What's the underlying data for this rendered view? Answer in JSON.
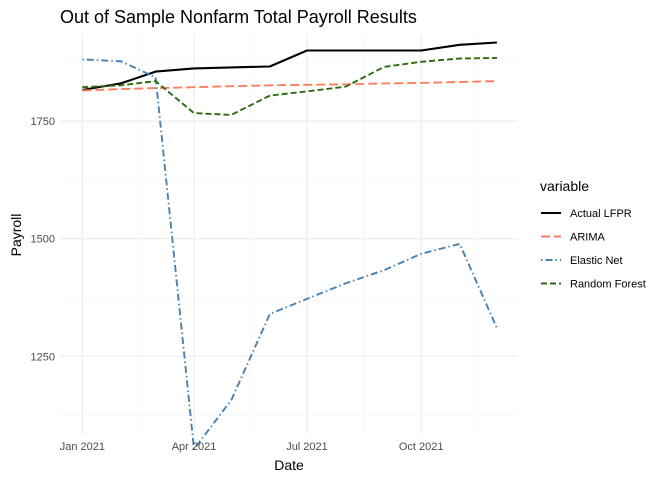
{
  "chart_data": {
    "type": "line",
    "title": "Out of Sample Nonfarm Total Payroll Results",
    "xlabel": "Date",
    "ylabel": "Payroll",
    "x": [
      "2021-01-01",
      "2021-02-01",
      "2021-03-01",
      "2021-04-01",
      "2021-05-01",
      "2021-06-01",
      "2021-07-01",
      "2021-08-01",
      "2021-09-01",
      "2021-10-01",
      "2021-11-01",
      "2021-12-01"
    ],
    "x_ticks": [
      {
        "date": "2021-01-01",
        "label": "Jan 2021"
      },
      {
        "date": "2021-04-01",
        "label": "Apr 2021"
      },
      {
        "date": "2021-07-01",
        "label": "Jul 2021"
      },
      {
        "date": "2021-10-01",
        "label": "Oct 2021"
      }
    ],
    "xlim": [
      "2020-12-14",
      "2021-12-18"
    ],
    "y_ticks": [
      1250,
      1500,
      1750
    ],
    "ylim": [
      1085,
      1935
    ],
    "legend_title": "variable",
    "legend_position": "right",
    "grid": true,
    "series": [
      {
        "name": "Actual LFPR",
        "color": "#000000",
        "dash": "solid",
        "values": [
          1816,
          1830,
          1855,
          1862,
          1864,
          1866,
          1900,
          1900,
          1900,
          1900,
          1912,
          1917
        ]
      },
      {
        "name": "ARIMA",
        "color": "#fa7f5e",
        "dash": "longdash",
        "values": [
          1815,
          1818,
          1820,
          1822,
          1824,
          1826,
          1827,
          1828,
          1830,
          1831,
          1833,
          1835
        ]
      },
      {
        "name": "Elastic Net",
        "color": "#4682b4",
        "dash": "dotdash",
        "values": [
          1881,
          1877,
          1843,
          1053,
          1157,
          1340,
          1372,
          1405,
          1433,
          1468,
          1489,
          1310
        ]
      },
      {
        "name": "Random Forest",
        "color": "#2d6b0d",
        "dash": "dashed",
        "values": [
          1822,
          1826,
          1835,
          1767,
          1763,
          1804,
          1813,
          1823,
          1865,
          1876,
          1883,
          1884
        ]
      }
    ]
  }
}
